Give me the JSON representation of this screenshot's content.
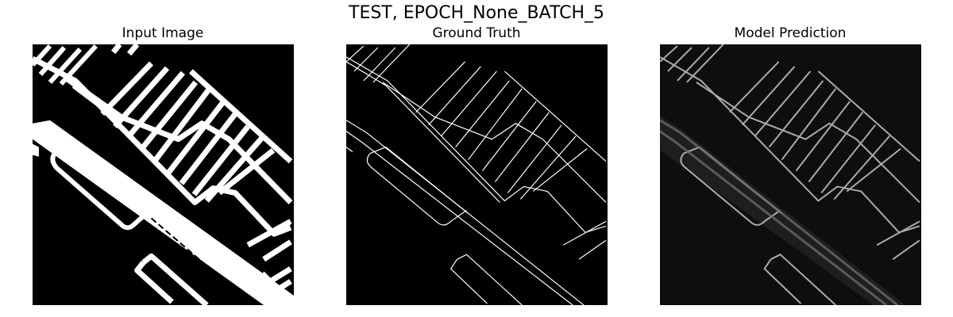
{
  "figure": {
    "suptitle": "TEST, EPOCH_None_BATCH_5"
  },
  "panels": [
    {
      "title": "Input Image",
      "image": "binary road-layout mask"
    },
    {
      "title": "Ground Truth",
      "image": "thin road-boundary edges"
    },
    {
      "title": "Model Prediction",
      "image": "predicted road-boundary edges"
    }
  ]
}
